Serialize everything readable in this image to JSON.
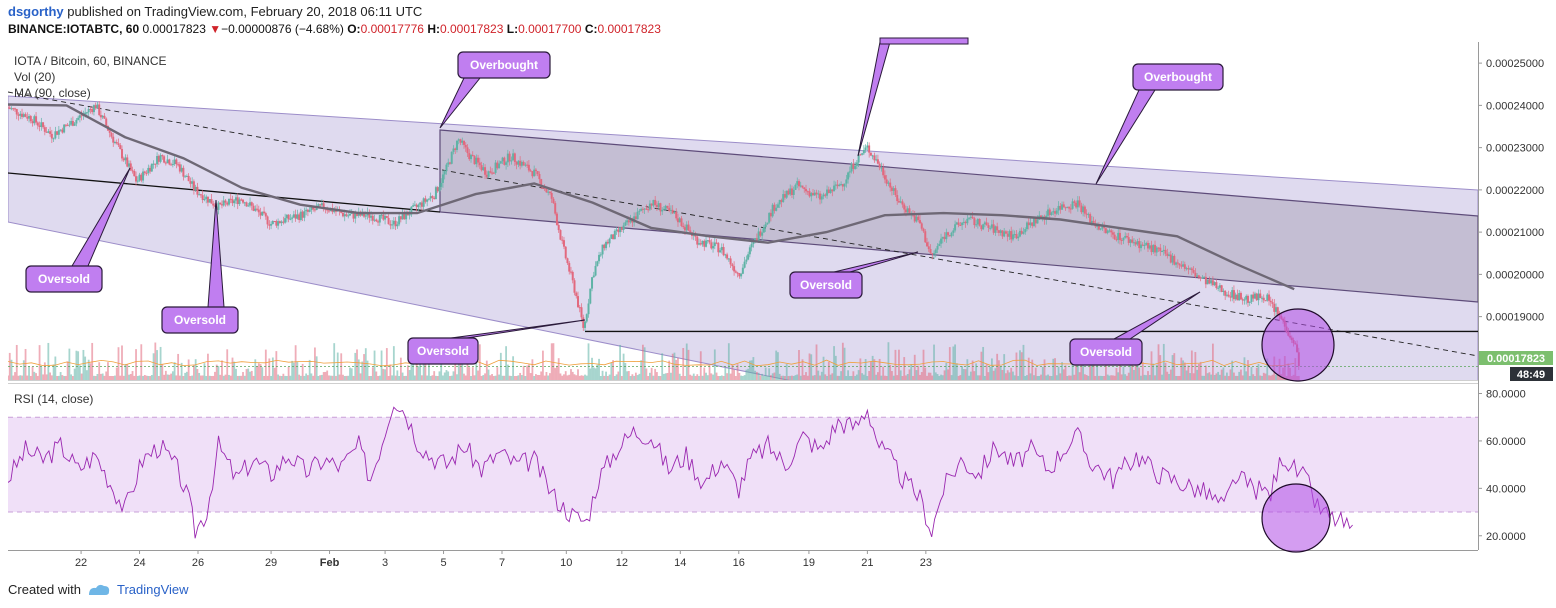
{
  "header": {
    "user": "dsgorthy",
    "published_text": "published on TradingView.com, February 20, 2018 06:11 UTC",
    "symbol": "BINANCE:IOTABTC, 60",
    "last": "0.00017823",
    "change_arrow": "▼",
    "change": "−0.00000876 (−4.68%)",
    "o_label": "O:",
    "o": "0.00017776",
    "h_label": "H:",
    "h": "0.00017823",
    "l_label": "L:",
    "l": "0.00017700",
    "c_label": "C:",
    "c": "0.00017823"
  },
  "legend": {
    "line1": "IOTA / Bitcoin, 60, BINANCE",
    "line2": "Vol (20)",
    "line3": "MA (90, close)",
    "rsi": "RSI (14, close)"
  },
  "price_badge": "0.00017823",
  "time_badge": "48:49",
  "footer": {
    "created": "Created with",
    "brand": "TradingView"
  },
  "colors": {
    "channel": "#9c8dc9",
    "callout_fill": "#c07ef0",
    "callout_border": "#2a1a3a",
    "rsi_line": "#9a27b0",
    "up": "#5fb3a6",
    "down": "#e2697e",
    "ma": "#6e6875",
    "badge": "#7cbf6e",
    "time_badge": "#2d3138"
  },
  "chart_data": [
    {
      "type": "line",
      "title": "IOTA / Bitcoin, 60, BINANCE",
      "x_tick_labels": [
        "22",
        "24",
        "26",
        "29",
        "Feb",
        "3",
        "5",
        "7",
        "10",
        "12",
        "14",
        "16",
        "19",
        "21",
        "23"
      ],
      "y_tick_labels": [
        "0.00025000",
        "0.00024000",
        "0.00023000",
        "0.00022000",
        "0.00021000",
        "0.00020000",
        "0.00019000",
        "0.00018000"
      ],
      "ylim": [
        0.000175,
        0.000255
      ],
      "grid": false,
      "price_series": {
        "name": "IOTA / Bitcoin close (approx.)",
        "points": [
          [
            0,
            0.0002395
          ],
          [
            8,
            0.000237
          ],
          [
            15,
            0.000233
          ],
          [
            22,
            0.000236
          ],
          [
            30,
            0.00024
          ],
          [
            36,
            0.000232
          ],
          [
            44,
            0.000222
          ],
          [
            52,
            0.000228
          ],
          [
            58,
            0.000226
          ],
          [
            64,
            0.00022
          ],
          [
            72,
            0.000216
          ],
          [
            80,
            0.000218
          ],
          [
            90,
            0.000212
          ],
          [
            100,
            0.000214
          ],
          [
            108,
            0.000216
          ],
          [
            116,
            0.000214
          ],
          [
            124,
            0.000214
          ],
          [
            132,
            0.000212
          ],
          [
            140,
            0.000216
          ],
          [
            146,
            0.000219
          ],
          [
            150,
            0.000225
          ],
          [
            154,
            0.000232
          ],
          [
            158,
            0.000228
          ],
          [
            164,
            0.000224
          ],
          [
            172,
            0.000228
          ],
          [
            180,
            0.000224
          ],
          [
            186,
            0.000218
          ],
          [
            190,
            0.000206
          ],
          [
            194,
            0.000196
          ],
          [
            197,
            0.000187
          ],
          [
            200,
            0.0002
          ],
          [
            204,
            0.000207
          ],
          [
            212,
            0.000212
          ],
          [
            220,
            0.000217
          ],
          [
            228,
            0.000214
          ],
          [
            236,
            0.000208
          ],
          [
            244,
            0.000206
          ],
          [
            250,
            0.0002
          ],
          [
            254,
            0.000206
          ],
          [
            262,
            0.000216
          ],
          [
            270,
            0.000221
          ],
          [
            278,
            0.000218
          ],
          [
            286,
            0.000222
          ],
          [
            290,
            0.000227
          ],
          [
            294,
            0.00023
          ],
          [
            298,
            0.000226
          ],
          [
            304,
            0.000218
          ],
          [
            312,
            0.000212
          ],
          [
            316,
            0.000204
          ],
          [
            320,
            0.000209
          ],
          [
            328,
            0.000213
          ],
          [
            336,
            0.000211
          ],
          [
            344,
            0.000209
          ],
          [
            352,
            0.000213
          ],
          [
            360,
            0.000216
          ],
          [
            366,
            0.000217
          ],
          [
            370,
            0.000213
          ],
          [
            376,
            0.00021
          ],
          [
            384,
            0.000208
          ],
          [
            392,
            0.000206
          ],
          [
            400,
            0.000203
          ],
          [
            408,
            0.000199
          ],
          [
            416,
            0.000196
          ],
          [
            424,
            0.000194
          ],
          [
            430,
            0.000195
          ],
          [
            436,
            0.000189
          ],
          [
            440,
            0.000184
          ],
          [
            442,
            0.0001782
          ]
        ]
      },
      "ma_series": {
        "name": "MA (90, close)",
        "points": [
          [
            0,
            0.0002402
          ],
          [
            20,
            0.00024
          ],
          [
            40,
            0.0002325
          ],
          [
            60,
            0.0002275
          ],
          [
            80,
            0.0002205
          ],
          [
            100,
            0.0002165
          ],
          [
            120,
            0.0002145
          ],
          [
            140,
            0.0002145
          ],
          [
            160,
            0.000219
          ],
          [
            180,
            0.0002215
          ],
          [
            200,
            0.000217
          ],
          [
            220,
            0.000211
          ],
          [
            240,
            0.000209
          ],
          [
            260,
            0.0002075
          ],
          [
            280,
            0.00021
          ],
          [
            300,
            0.000214
          ],
          [
            320,
            0.0002145
          ],
          [
            340,
            0.000214
          ],
          [
            360,
            0.000213
          ],
          [
            380,
            0.000211
          ],
          [
            400,
            0.000209
          ],
          [
            420,
            0.0002025
          ],
          [
            440,
            0.0001965
          ]
        ]
      },
      "annotations": [
        {
          "text": "Overbought",
          "at": [
            146,
            0.000231
          ]
        },
        {
          "text": "Overbought",
          "at": [
            328,
            0.000221
          ]
        },
        {
          "text": "Oversold",
          "at": [
            37,
            0.000217
          ]
        },
        {
          "text": "Oversold",
          "at": [
            62,
            0.000214
          ]
        },
        {
          "text": "Oversold",
          "at": [
            194,
            0.000186
          ]
        },
        {
          "text": "Oversold",
          "at": [
            302,
            0.000202
          ]
        },
        {
          "text": "Oversold",
          "at": [
            405,
            0.000198
          ]
        }
      ],
      "horizontal_level": 0.0001865,
      "last_price": 0.00017823
    },
    {
      "type": "line",
      "title": "RSI (14, close)",
      "y_tick_labels": [
        "80.0000",
        "60.0000",
        "40.0000",
        "20.0000"
      ],
      "ylim": [
        14,
        84
      ],
      "band": [
        30,
        70
      ],
      "series": [
        {
          "name": "RSI (14, close)",
          "points": [
            [
              0,
              44
            ],
            [
              6,
              56
            ],
            [
              12,
              52
            ],
            [
              18,
              58
            ],
            [
              24,
              48
            ],
            [
              30,
              54
            ],
            [
              36,
              40
            ],
            [
              40,
              31
            ],
            [
              46,
              52
            ],
            [
              52,
              58
            ],
            [
              58,
              48
            ],
            [
              62,
              34
            ],
            [
              64,
              22
            ],
            [
              68,
              30
            ],
            [
              72,
              58
            ],
            [
              78,
              44
            ],
            [
              84,
              52
            ],
            [
              90,
              46
            ],
            [
              96,
              54
            ],
            [
              102,
              47
            ],
            [
              108,
              52
            ],
            [
              114,
              49
            ],
            [
              120,
              58
            ],
            [
              124,
              44
            ],
            [
              128,
              60
            ],
            [
              132,
              78
            ],
            [
              136,
              72
            ],
            [
              140,
              60
            ],
            [
              144,
              54
            ],
            [
              150,
              50
            ],
            [
              156,
              58
            ],
            [
              162,
              48
            ],
            [
              168,
              55
            ],
            [
              174,
              50
            ],
            [
              180,
              52
            ],
            [
              186,
              38
            ],
            [
              190,
              32
            ],
            [
              194,
              28
            ],
            [
              198,
              26
            ],
            [
              202,
              44
            ],
            [
              208,
              56
            ],
            [
              214,
              64
            ],
            [
              220,
              62
            ],
            [
              226,
              48
            ],
            [
              232,
              54
            ],
            [
              238,
              42
            ],
            [
              244,
              52
            ],
            [
              250,
              40
            ],
            [
              254,
              52
            ],
            [
              260,
              58
            ],
            [
              266,
              50
            ],
            [
              272,
              62
            ],
            [
              278,
              56
            ],
            [
              284,
              68
            ],
            [
              290,
              66
            ],
            [
              294,
              74
            ],
            [
              298,
              58
            ],
            [
              302,
              52
            ],
            [
              306,
              44
            ],
            [
              312,
              36
            ],
            [
              316,
              22
            ],
            [
              320,
              40
            ],
            [
              326,
              52
            ],
            [
              332,
              46
            ],
            [
              338,
              58
            ],
            [
              344,
              50
            ],
            [
              350,
              56
            ],
            [
              356,
              48
            ],
            [
              362,
              58
            ],
            [
              366,
              62
            ],
            [
              370,
              52
            ],
            [
              378,
              44
            ],
            [
              386,
              54
            ],
            [
              394,
              46
            ],
            [
              402,
              42
            ],
            [
              410,
              38
            ],
            [
              416,
              32
            ],
            [
              420,
              45
            ],
            [
              426,
              40
            ],
            [
              432,
              38
            ],
            [
              436,
              54
            ],
            [
              440,
              48
            ],
            [
              444,
              44
            ],
            [
              448,
              32
            ],
            [
              452,
              28
            ],
            [
              456,
              26
            ],
            [
              460,
              22
            ]
          ]
        }
      ]
    }
  ]
}
